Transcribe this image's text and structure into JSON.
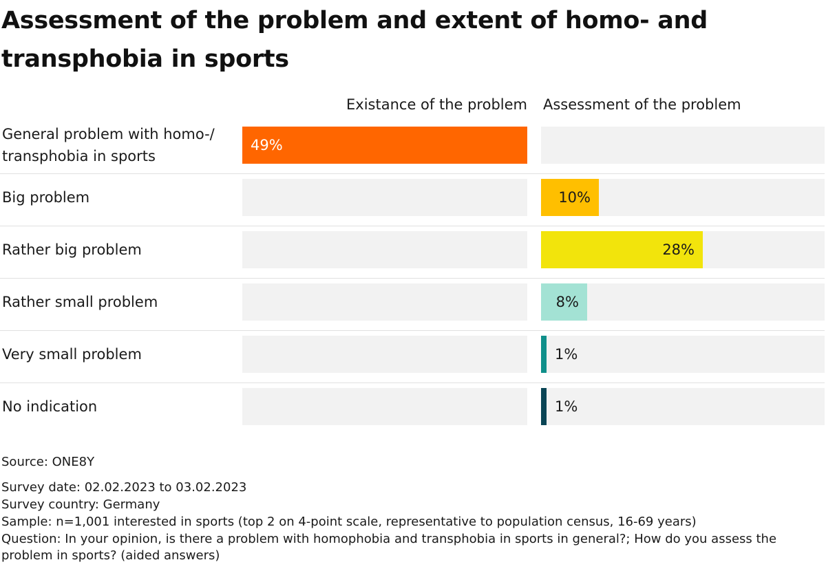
{
  "title": "Assessment of the problem and extent of homo- and transphobia in sports",
  "chart_data": {
    "type": "bar",
    "orientation": "horizontal",
    "panels": [
      {
        "name": "Existance of the problem",
        "max": 100
      },
      {
        "name": "Assessment of the problem",
        "max": 100
      }
    ],
    "categories": [
      "General problem with homo-/ transphobia in sports",
      "Big problem",
      "Rather big problem",
      "Rather small problem",
      "Very small problem",
      "No indication"
    ],
    "series": [
      {
        "name": "Existance of the problem",
        "values": [
          49,
          null,
          null,
          null,
          null,
          null
        ],
        "labels": [
          "49%",
          "",
          "",
          "",
          "",
          ""
        ]
      },
      {
        "name": "Assessment of the problem",
        "values": [
          null,
          10,
          28,
          8,
          1,
          1
        ],
        "labels": [
          "",
          "10%",
          "28%",
          "8%",
          "1%",
          "1%"
        ]
      }
    ],
    "colors": [
      "#ff6600",
      "#ffbf00",
      "#f2e40c",
      "#a3e2d4",
      "#0f8f8a",
      "#0a4555"
    ],
    "label_colors": [
      "#ffffff",
      "#1a1a1a",
      "#1a1a1a",
      "#1a1a1a",
      "#1a1a1a",
      "#1a1a1a"
    ]
  },
  "footer": {
    "source": "Source: ONE8Y",
    "survey_date": "Survey date: 02.02.2023 to 03.02.2023",
    "survey_country": "Survey country: Germany",
    "sample": "Sample: n=1,001 interested in sports (top 2 on 4-point scale, representative to population census, 16-69 years)",
    "question": "Question: In your opinion, is there a problem with homophobia and transphobia in sports in general?; How do you assess the problem in sports? (aided answers)"
  }
}
